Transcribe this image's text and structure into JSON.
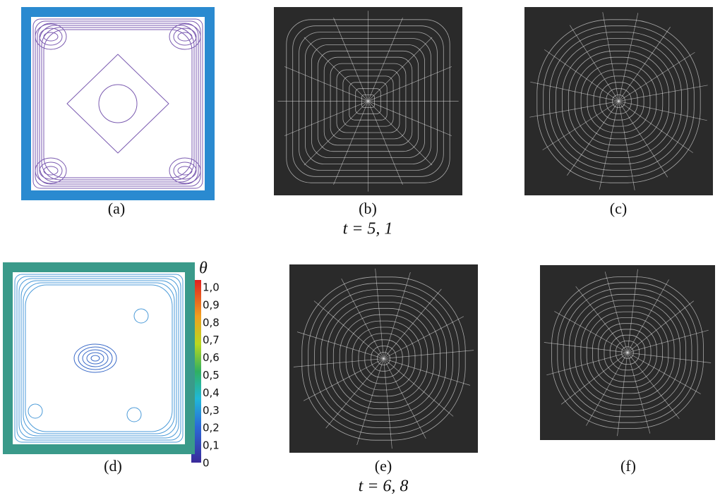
{
  "panels": [
    {
      "label": "(a)"
    },
    {
      "label": "(b)"
    },
    {
      "label": "(c)"
    },
    {
      "label": "(d)"
    },
    {
      "label": "(e)"
    },
    {
      "label": "(f)"
    }
  ],
  "rows": [
    {
      "caption": "t = 5, 1"
    },
    {
      "caption": "t = 6, 8"
    }
  ],
  "colorbar": {
    "title": "θ",
    "ticks": [
      "1,0",
      "0,9",
      "0,8",
      "0,7",
      "0,6",
      "0,5",
      "0,4",
      "0,3",
      "0,2",
      "0,1",
      "0"
    ]
  }
}
